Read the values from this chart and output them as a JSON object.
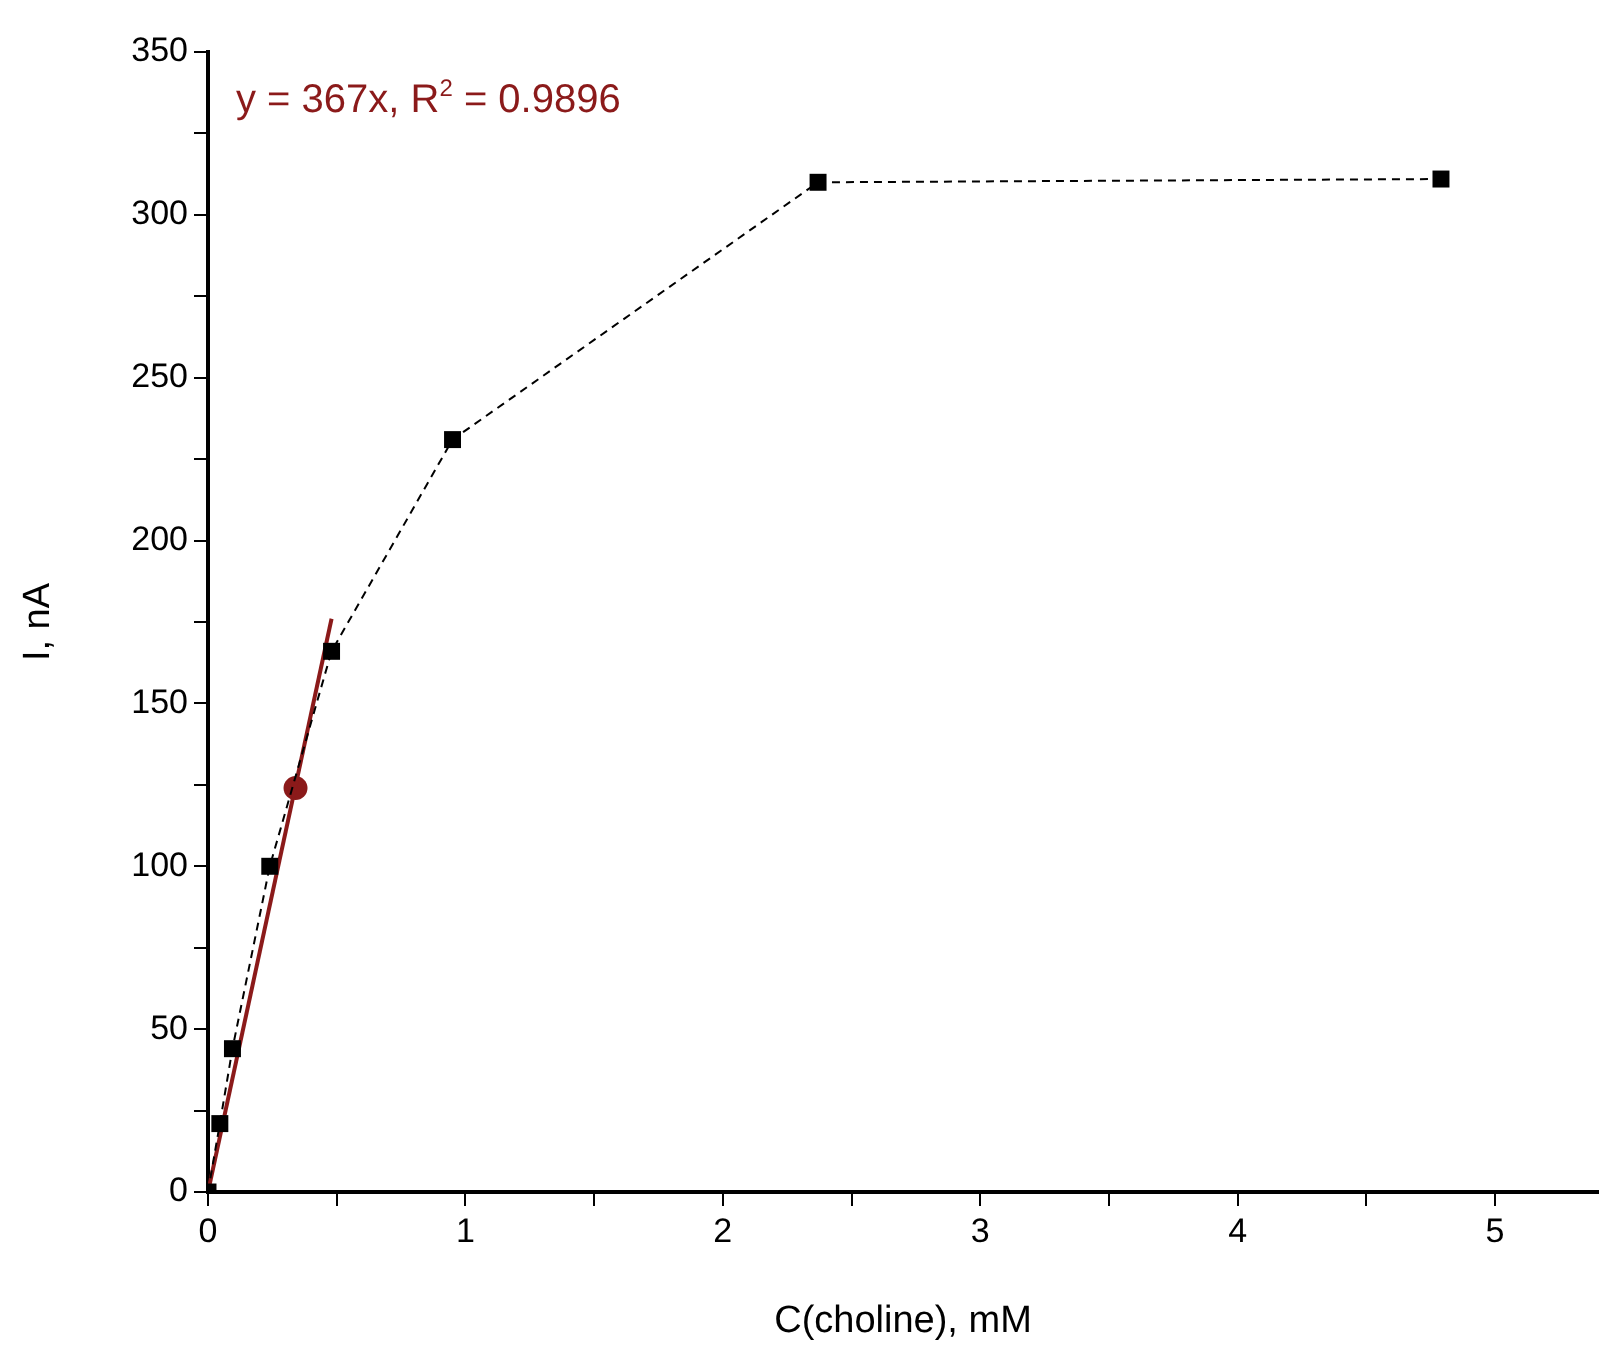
{
  "chart_data": {
    "type": "line",
    "xlabel": "C(choline), mM",
    "ylabel": "I, nA",
    "annotations": [
      "y = 367x, R$^{2}$ = 0.9896"
    ],
    "series": [
      {
        "type": "line",
        "color": "#000000",
        "marker": "square",
        "line_style": "dashed",
        "x": [
          0,
          0.046,
          0.095,
          0.24,
          0.48,
          0.95,
          2.37,
          4.79
        ],
        "values": [
          0,
          21,
          44,
          100,
          166,
          231,
          310,
          311
        ]
      },
      {
        "type": "line",
        "color": "#8b1a1a",
        "marker": "none",
        "line_style": "solid",
        "x": [
          0,
          0.48
        ],
        "values": [
          0,
          176
        ]
      },
      {
        "type": "scatter",
        "color": "#8b1a1a",
        "marker": "circle",
        "x": [
          0.34
        ],
        "values": [
          124
        ]
      }
    ],
    "xlim": [
      0,
      5.4
    ],
    "ylim": [
      0,
      350
    ],
    "xticks": [
      0,
      {
        "value": 0.5,
        "label": null
      },
      1,
      {
        "value": 1.5,
        "label": null
      },
      2,
      {
        "value": 2.5,
        "label": null
      },
      3,
      {
        "value": 3.5,
        "label": null
      },
      4,
      {
        "value": 4.5,
        "label": null
      },
      5
    ],
    "yticks": [
      0,
      {
        "value": 25,
        "label": null
      },
      50,
      {
        "value": 75,
        "label": null
      },
      100,
      {
        "value": 125,
        "label": null
      },
      150,
      {
        "value": 175,
        "label": null
      },
      200,
      {
        "value": 225,
        "label": null
      },
      250,
      {
        "value": 275,
        "label": null
      },
      300,
      {
        "value": 325,
        "label": null
      },
      350
    ],
    "grid": false,
    "legend": false
  }
}
